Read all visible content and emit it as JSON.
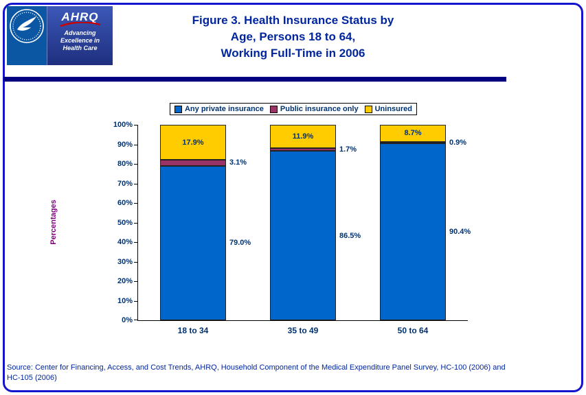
{
  "header": {
    "title_line1": "Figure 3. Health Insurance Status by",
    "title_line2": "Age, Persons 18 to 64,",
    "title_line3": "Working Full-Time in 2006"
  },
  "logos": {
    "ahrq_text": "AHRQ",
    "ahrq_tagline_line1": "Advancing",
    "ahrq_tagline_line2": "Excellence in",
    "ahrq_tagline_line3": "Health Care"
  },
  "chart_data": {
    "type": "bar",
    "stacked": true,
    "title": "",
    "xlabel": "",
    "ylabel": "Percentages",
    "ylim": [
      0,
      100
    ],
    "grid": false,
    "legend_position": "top",
    "y_ticks": [
      "0%",
      "10%",
      "20%",
      "30%",
      "40%",
      "50%",
      "60%",
      "70%",
      "80%",
      "90%",
      "100%"
    ],
    "categories": [
      "18 to 34",
      "35 to 49",
      "50 to 64"
    ],
    "series": [
      {
        "name": "Any private insurance",
        "color": "#0066CC",
        "values": [
          79.0,
          86.5,
          90.4
        ],
        "labels": [
          "79.0%",
          "86.5%",
          "90.4%"
        ],
        "label_position": "right"
      },
      {
        "name": "Public insurance only",
        "color": "#993366",
        "values": [
          3.1,
          1.7,
          0.9
        ],
        "labels": [
          "3.1%",
          "1.7%",
          "0.9%"
        ],
        "label_position": "right"
      },
      {
        "name": "Uninsured",
        "color": "#FFCC00",
        "values": [
          17.9,
          11.9,
          8.7
        ],
        "labels": [
          "17.9%",
          "11.9%",
          "8.7%"
        ],
        "label_position": "inside"
      }
    ]
  },
  "source": {
    "line1": "Source: Center for Financing, Access, and Cost Trends, AHRQ, Household Component of the Medical Expenditure Panel Survey, HC-100 (2006) and",
    "line2": "HC-105 (2006)"
  },
  "colors": {
    "title": "#00259E",
    "chart_text": "#003170",
    "ylabel": "#7F007F",
    "divider": "#000080",
    "page_border": "#1414CC"
  }
}
